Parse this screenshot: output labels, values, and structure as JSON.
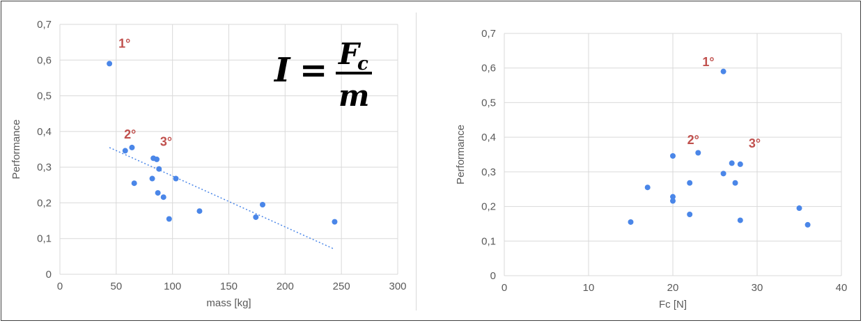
{
  "chart_data": [
    {
      "type": "scatter",
      "xlabel": "mass [kg]",
      "ylabel": "Performance",
      "xlim": [
        0,
        300
      ],
      "ylim": [
        0,
        0.7
      ],
      "x_ticks": [
        0,
        50,
        100,
        150,
        200,
        250,
        300
      ],
      "x_tick_labels": [
        "0",
        "50",
        "100",
        "150",
        "200",
        "250",
        "300"
      ],
      "y_ticks": [
        0,
        0.1,
        0.2,
        0.3,
        0.4,
        0.5,
        0.6,
        0.7
      ],
      "y_tick_labels": [
        "0",
        "0,1",
        "0,2",
        "0,3",
        "0,4",
        "0,5",
        "0,6",
        "0,7"
      ],
      "grid": true,
      "point_color": "#4a86e8",
      "series": [
        {
          "points": [
            [
              44,
              0.59
            ],
            [
              58,
              0.346
            ],
            [
              64,
              0.355
            ],
            [
              66,
              0.255
            ],
            [
              82,
              0.268
            ],
            [
              83,
              0.325
            ],
            [
              86,
              0.322
            ],
            [
              87,
              0.228
            ],
            [
              88,
              0.295
            ],
            [
              92,
              0.216
            ],
            [
              97,
              0.155
            ],
            [
              103,
              0.268
            ],
            [
              124,
              0.177
            ],
            [
              174,
              0.16
            ],
            [
              180,
              0.195
            ],
            [
              244,
              0.147
            ]
          ]
        }
      ],
      "trendline": {
        "style": "dotted",
        "color": "#4a86e8",
        "from": [
          44,
          0.355
        ],
        "to": [
          244,
          0.07
        ]
      },
      "annotations": [
        {
          "text": "1°",
          "x": 52,
          "y": 0.635
        },
        {
          "text": "2°",
          "x": 57,
          "y": 0.38
        },
        {
          "text": "3°",
          "x": 89,
          "y": 0.36
        }
      ],
      "formula": {
        "lhs": "I",
        "eq": "=",
        "numerator": "F",
        "numerator_sub": "c",
        "denominator": "m"
      }
    },
    {
      "type": "scatter",
      "xlabel": "Fc [N]",
      "ylabel": "Performance",
      "xlim": [
        0,
        40
      ],
      "ylim": [
        0,
        0.7
      ],
      "x_ticks": [
        0,
        10,
        20,
        30,
        40
      ],
      "x_tick_labels": [
        "0",
        "10",
        "20",
        "30",
        "40"
      ],
      "y_ticks": [
        0,
        0.1,
        0.2,
        0.3,
        0.4,
        0.5,
        0.6,
        0.7
      ],
      "y_tick_labels": [
        "0",
        "0,1",
        "0,2",
        "0,3",
        "0,4",
        "0,5",
        "0,6",
        "0,7"
      ],
      "grid": true,
      "point_color": "#4a86e8",
      "series": [
        {
          "points": [
            [
              15,
              0.155
            ],
            [
              17,
              0.255
            ],
            [
              20,
              0.346
            ],
            [
              20,
              0.228
            ],
            [
              20,
              0.216
            ],
            [
              22,
              0.268
            ],
            [
              22,
              0.177
            ],
            [
              23,
              0.355
            ],
            [
              26,
              0.59
            ],
            [
              26,
              0.295
            ],
            [
              27,
              0.325
            ],
            [
              27.4,
              0.268
            ],
            [
              28,
              0.322
            ],
            [
              28,
              0.16
            ],
            [
              35,
              0.195
            ],
            [
              36,
              0.147
            ]
          ]
        }
      ],
      "annotations": [
        {
          "text": "1°",
          "x": 23.5,
          "y": 0.605
        },
        {
          "text": "2°",
          "x": 21.7,
          "y": 0.38
        },
        {
          "text": "3°",
          "x": 29,
          "y": 0.37
        }
      ]
    }
  ]
}
